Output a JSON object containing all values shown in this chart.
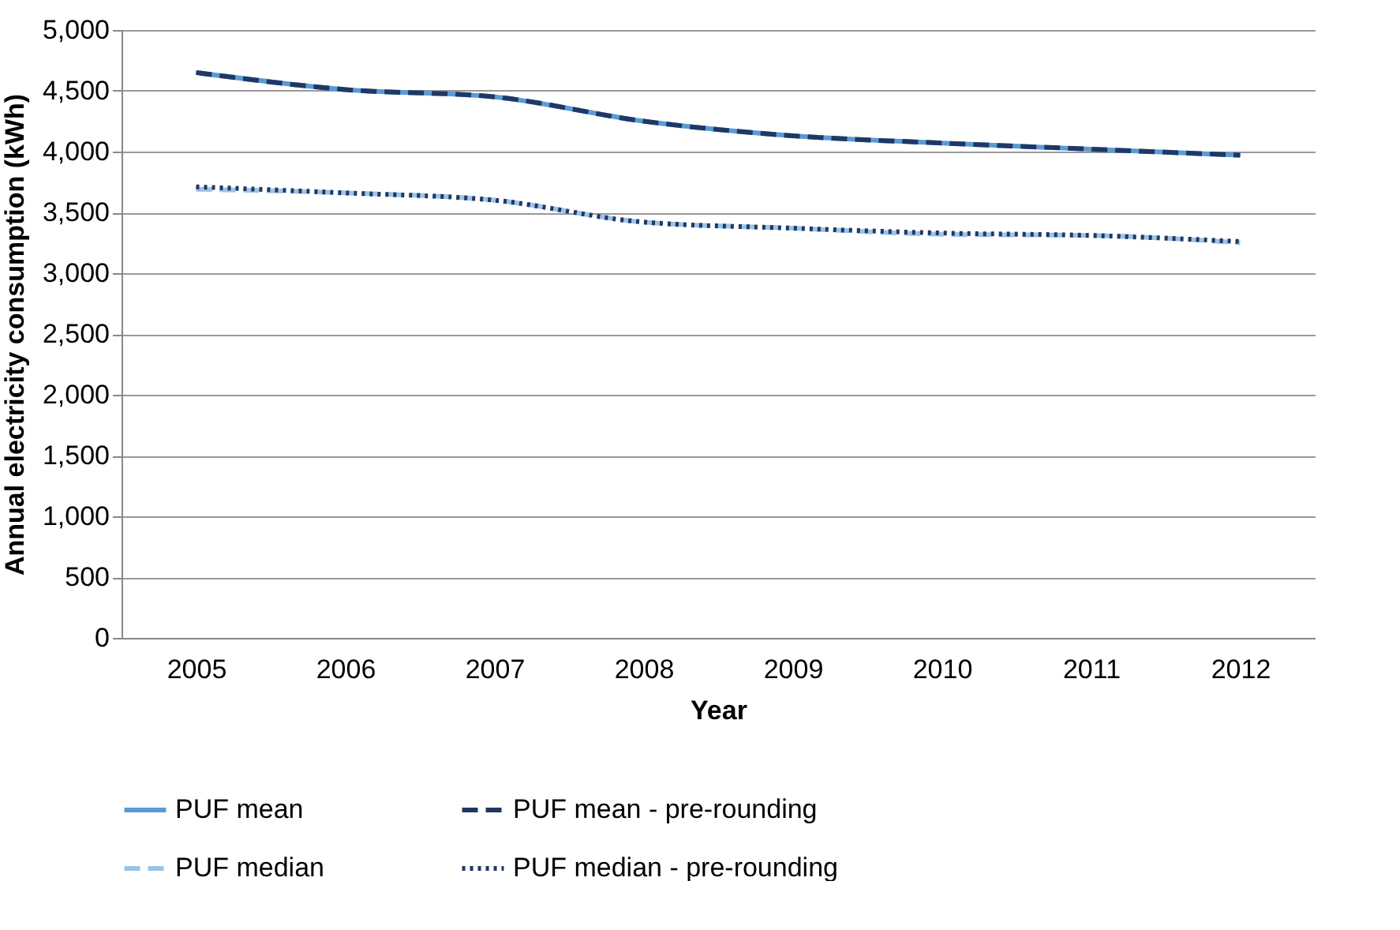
{
  "chart_data": {
    "type": "line",
    "xlabel": "Year",
    "ylabel": "Annual electricity consumption (kWh)",
    "categories": [
      "2005",
      "2006",
      "2007",
      "2008",
      "2009",
      "2010",
      "2011",
      "2012"
    ],
    "series": [
      {
        "name": "PUF mean",
        "color": "#5b9bd5",
        "line_style": "solid",
        "values": [
          4650,
          4510,
          4450,
          4250,
          4130,
          4070,
          4020,
          3970
        ]
      },
      {
        "name": "PUF mean - pre-rounding",
        "color": "#1f3864",
        "line_style": "dashed",
        "values": [
          4650,
          4510,
          4450,
          4250,
          4130,
          4070,
          4020,
          3970
        ]
      },
      {
        "name": "PUF median",
        "color": "#9dc3e6",
        "line_style": "dashed",
        "values": [
          3690,
          3660,
          3600,
          3420,
          3370,
          3320,
          3310,
          3250
        ]
      },
      {
        "name": "PUF median - pre-rounding",
        "color": "#1f3864",
        "line_style": "dotted",
        "values": [
          3710,
          3660,
          3600,
          3420,
          3370,
          3330,
          3310,
          3260
        ]
      }
    ],
    "ylim": [
      0,
      5000
    ],
    "yticks": [
      0,
      500,
      {
        "value": 1000,
        "label": "1,000"
      },
      {
        "value": 1500,
        "label": "1,500"
      },
      {
        "value": 2000,
        "label": "2,000"
      },
      {
        "value": 2500,
        "label": "2,500"
      },
      {
        "value": 3000,
        "label": "3,000"
      },
      {
        "value": 3500,
        "label": "3,500"
      },
      {
        "value": 4000,
        "label": "4,000"
      },
      {
        "value": 4500,
        "label": "4,500"
      },
      {
        "value": 5000,
        "label": "5,000"
      }
    ],
    "grid": "y",
    "legend": "bottom"
  }
}
